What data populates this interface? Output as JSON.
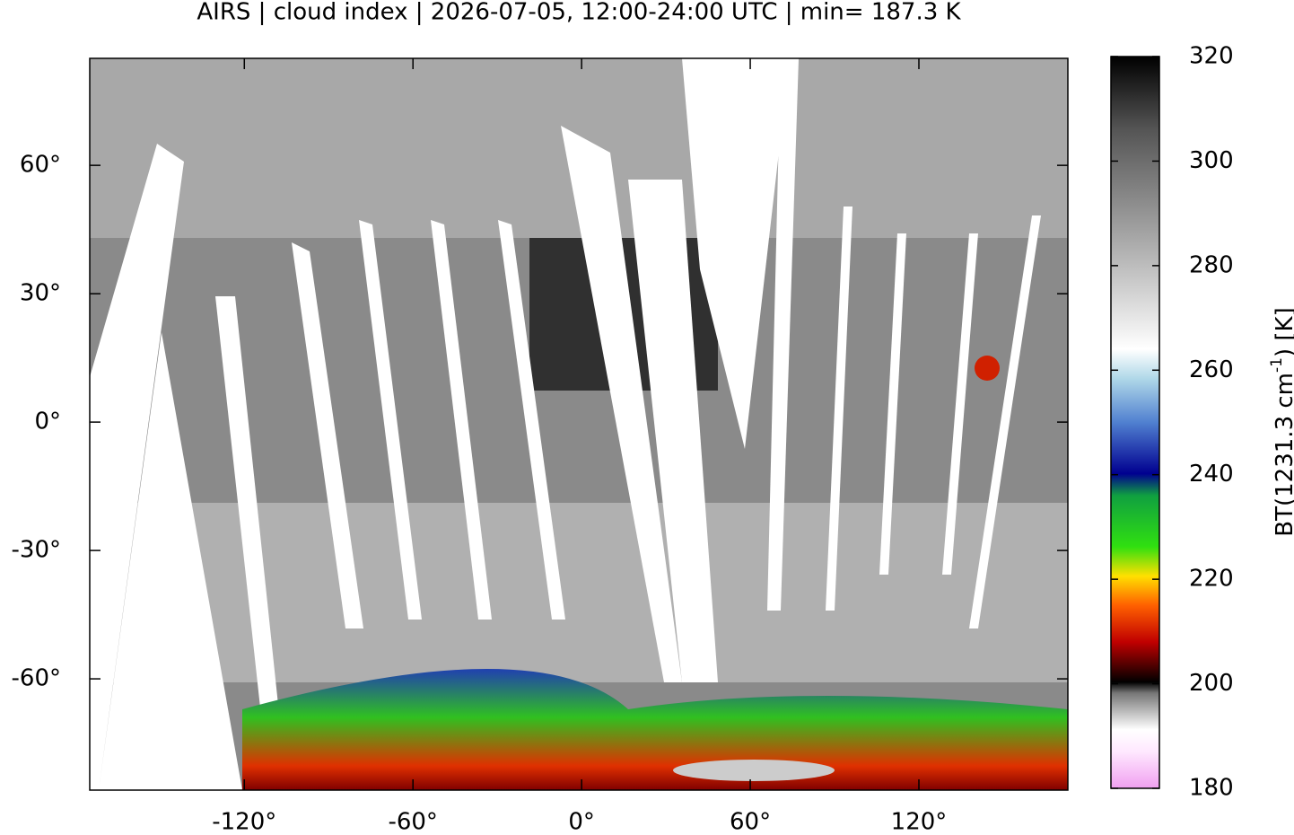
{
  "chart_data": {
    "type": "map",
    "title": "AIRS | cloud index | 2026-07-05, 12:00-24:00 UTC | min= 187.3 K",
    "xlim": [
      -175,
      173
    ],
    "ylim": [
      -86,
      85
    ],
    "xticks": [
      {
        "value": -120,
        "label": "-120°"
      },
      {
        "value": -60,
        "label": "-60°"
      },
      {
        "value": 0,
        "label": "0°"
      },
      {
        "value": 60,
        "label": "60°"
      },
      {
        "value": 120,
        "label": "120°"
      }
    ],
    "yticks": [
      {
        "value": -60,
        "label": "-60°"
      },
      {
        "value": -30,
        "label": "-30°"
      },
      {
        "value": 0,
        "label": "0°"
      },
      {
        "value": 30,
        "label": "30°"
      },
      {
        "value": 60,
        "label": "60°"
      }
    ],
    "colorbar": {
      "lim": [
        180,
        320
      ],
      "ticks": [
        180,
        200,
        220,
        240,
        260,
        280,
        300,
        320
      ],
      "label": "BT(1231.3 cm",
      "label_sup": "-1",
      "label_end": ") [K]"
    }
  }
}
